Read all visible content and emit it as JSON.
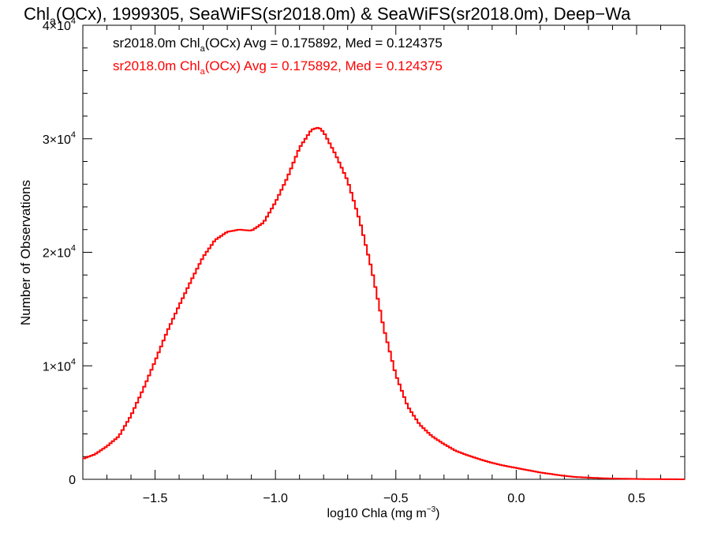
{
  "title": {
    "prefix": "Chl",
    "sub": "a",
    "rest": "(OCx), 1999305, SeaWiFS(sr2018.0m) & SeaWiFS(sr2018.0m), Deep−Wa"
  },
  "legend": [
    {
      "label": "sr2018.0m",
      "var": "Chl",
      "sub": "a",
      "tail": "(OCx) Avg = 0.175892, Med = 0.124375",
      "color": "#000000"
    },
    {
      "label": "sr2018.0m",
      "var": "Chl",
      "sub": "a",
      "tail": "(OCx) Avg = 0.175892, Med = 0.124375",
      "color": "#ff0000"
    }
  ],
  "axes": {
    "xlabel_main": "log10 Chla (mg m",
    "xlabel_exp": "−3",
    "xlabel_close": ")",
    "ylabel": "Number of Observations",
    "xticks": [
      "−1.5",
      "−1.0",
      "−0.5",
      "0.0",
      "0.5"
    ],
    "yticks": [
      {
        "mant": "0",
        "exp": ""
      },
      {
        "mant": "1×10",
        "exp": "4"
      },
      {
        "mant": "2×10",
        "exp": "4"
      },
      {
        "mant": "3×10",
        "exp": "4"
      },
      {
        "mant": "4×10",
        "exp": "4"
      }
    ]
  },
  "chart_data": {
    "type": "line",
    "step": true,
    "xlim": [
      -1.8,
      0.7
    ],
    "ylim": [
      0,
      40000
    ],
    "x_tick_values": [
      -1.5,
      -1.0,
      -0.5,
      0.0,
      0.5
    ],
    "y_tick_values": [
      0,
      10000,
      20000,
      30000,
      40000
    ],
    "series": [
      {
        "color": "#ff0000",
        "x": [
          -1.8,
          -1.75,
          -1.7,
          -1.65,
          -1.6,
          -1.55,
          -1.5,
          -1.45,
          -1.4,
          -1.35,
          -1.3,
          -1.25,
          -1.2,
          -1.15,
          -1.1,
          -1.05,
          -1.0,
          -0.95,
          -0.9,
          -0.85,
          -0.82,
          -0.8,
          -0.75,
          -0.7,
          -0.65,
          -0.6,
          -0.55,
          -0.5,
          -0.45,
          -0.4,
          -0.35,
          -0.3,
          -0.25,
          -0.2,
          -0.15,
          -0.1,
          -0.05,
          0.0,
          0.05,
          0.1,
          0.15,
          0.2,
          0.25,
          0.3,
          0.35,
          0.4,
          0.45,
          0.5,
          0.55,
          0.6,
          0.65,
          0.7
        ],
        "y": [
          1800,
          2200,
          2900,
          3800,
          5600,
          7900,
          10400,
          13000,
          15300,
          17500,
          19600,
          21100,
          21800,
          22000,
          21900,
          22600,
          24400,
          26600,
          29200,
          30800,
          31000,
          30600,
          28600,
          26300,
          22800,
          18500,
          13300,
          9200,
          6400,
          4800,
          3800,
          3100,
          2500,
          2100,
          1750,
          1450,
          1200,
          1000,
          800,
          600,
          450,
          300,
          200,
          150,
          100,
          70,
          50,
          30,
          20,
          10,
          5,
          0
        ]
      }
    ]
  }
}
